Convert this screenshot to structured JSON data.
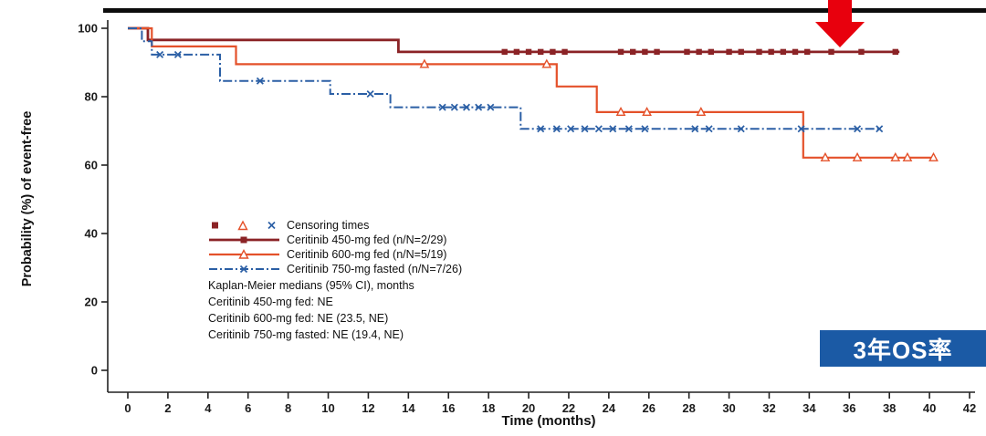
{
  "chart_data": {
    "type": "line",
    "subtype": "kaplan-meier-step",
    "xlabel": "Time (months)",
    "ylabel": "Probability (%) of event-free",
    "xlim": [
      0,
      42
    ],
    "ylim": [
      0,
      100
    ],
    "xticks": [
      0,
      2,
      4,
      6,
      8,
      10,
      12,
      14,
      16,
      18,
      20,
      22,
      24,
      26,
      28,
      30,
      32,
      34,
      36,
      38,
      40,
      42
    ],
    "yticks": [
      0,
      20,
      40,
      60,
      80,
      100
    ],
    "grid": false,
    "legend_position": "inside-lower-left",
    "censoring_legend_label": "Censoring times",
    "series": [
      {
        "name": "Ceritinib 450-mg fed (n/N=2/29)",
        "color": "#8B2326",
        "marker": "filled-square",
        "line_style": "solid",
        "line_width": 2.8,
        "steps": [
          [
            0,
            100
          ],
          [
            1.0,
            100
          ],
          [
            1.0,
            96.6
          ],
          [
            13.5,
            96.6
          ],
          [
            13.5,
            93.1
          ],
          [
            38.5,
            93.1
          ]
        ],
        "censor_points": [
          [
            18.8,
            93.1
          ],
          [
            19.4,
            93.1
          ],
          [
            20.0,
            93.1
          ],
          [
            20.6,
            93.1
          ],
          [
            21.2,
            93.1
          ],
          [
            21.8,
            93.1
          ],
          [
            24.6,
            93.1
          ],
          [
            25.2,
            93.1
          ],
          [
            25.8,
            93.1
          ],
          [
            26.4,
            93.1
          ],
          [
            27.9,
            93.1
          ],
          [
            28.5,
            93.1
          ],
          [
            29.1,
            93.1
          ],
          [
            30.0,
            93.1
          ],
          [
            30.6,
            93.1
          ],
          [
            31.5,
            93.1
          ],
          [
            32.1,
            93.1
          ],
          [
            32.7,
            93.1
          ],
          [
            33.3,
            93.1
          ],
          [
            33.9,
            93.1
          ],
          [
            35.1,
            93.1
          ],
          [
            36.6,
            93.1
          ],
          [
            38.3,
            93.1
          ]
        ]
      },
      {
        "name": "Ceritinib 600-mg fed (n/N=5/19)",
        "color": "#E4512A",
        "marker": "open-triangle",
        "line_style": "solid",
        "line_width": 2.2,
        "steps": [
          [
            0,
            100
          ],
          [
            1.2,
            100
          ],
          [
            1.2,
            94.7
          ],
          [
            5.4,
            94.7
          ],
          [
            5.4,
            89.5
          ],
          [
            21.4,
            89.5
          ],
          [
            21.4,
            83.0
          ],
          [
            23.4,
            83.0
          ],
          [
            23.4,
            75.5
          ],
          [
            33.7,
            75.5
          ],
          [
            33.7,
            62.2
          ],
          [
            40.3,
            62.2
          ]
        ],
        "censor_points": [
          [
            14.8,
            89.5
          ],
          [
            20.9,
            89.5
          ],
          [
            24.6,
            75.5
          ],
          [
            25.9,
            75.5
          ],
          [
            28.6,
            75.5
          ],
          [
            34.8,
            62.2
          ],
          [
            36.4,
            62.2
          ],
          [
            38.3,
            62.2
          ],
          [
            38.9,
            62.2
          ],
          [
            40.2,
            62.2
          ]
        ]
      },
      {
        "name": "Ceritinib 750-mg fasted (n/N=7/26)",
        "color": "#2B5FA5",
        "marker": "x-cross",
        "line_style": "dash-dot",
        "line_width": 2.0,
        "steps": [
          [
            0,
            100
          ],
          [
            0.7,
            100
          ],
          [
            0.7,
            96.2
          ],
          [
            1.2,
            96.2
          ],
          [
            1.2,
            92.3
          ],
          [
            4.6,
            92.3
          ],
          [
            4.6,
            84.6
          ],
          [
            10.1,
            84.6
          ],
          [
            10.1,
            80.8
          ],
          [
            13.1,
            80.8
          ],
          [
            13.1,
            76.9
          ],
          [
            19.6,
            76.9
          ],
          [
            19.6,
            70.6
          ],
          [
            37.5,
            70.6
          ]
        ],
        "censor_points": [
          [
            1.6,
            92.3
          ],
          [
            2.5,
            92.3
          ],
          [
            6.6,
            84.6
          ],
          [
            12.1,
            80.8
          ],
          [
            15.7,
            76.9
          ],
          [
            16.3,
            76.9
          ],
          [
            16.9,
            76.9
          ],
          [
            17.5,
            76.9
          ],
          [
            18.1,
            76.9
          ],
          [
            20.6,
            70.6
          ],
          [
            21.4,
            70.6
          ],
          [
            22.1,
            70.6
          ],
          [
            22.8,
            70.6
          ],
          [
            23.5,
            70.6
          ],
          [
            24.2,
            70.6
          ],
          [
            25.0,
            70.6
          ],
          [
            25.8,
            70.6
          ],
          [
            28.3,
            70.6
          ],
          [
            29.0,
            70.6
          ],
          [
            30.6,
            70.6
          ],
          [
            33.6,
            70.6
          ],
          [
            36.4,
            70.6
          ],
          [
            37.5,
            70.6
          ]
        ]
      }
    ],
    "annotations": [
      "Kaplan-Meier medians (95% CI), months",
      "Ceritinib 450-mg fed: NE",
      "Ceritinib 600-mg fed: NE (23.5, NE)",
      "Ceritinib 750-mg fasted: NE (19.4, NE)"
    ]
  },
  "badge": {
    "text": "3年OS率",
    "background": "#1B5AA5"
  },
  "arrow": {
    "color": "#E8000D"
  }
}
